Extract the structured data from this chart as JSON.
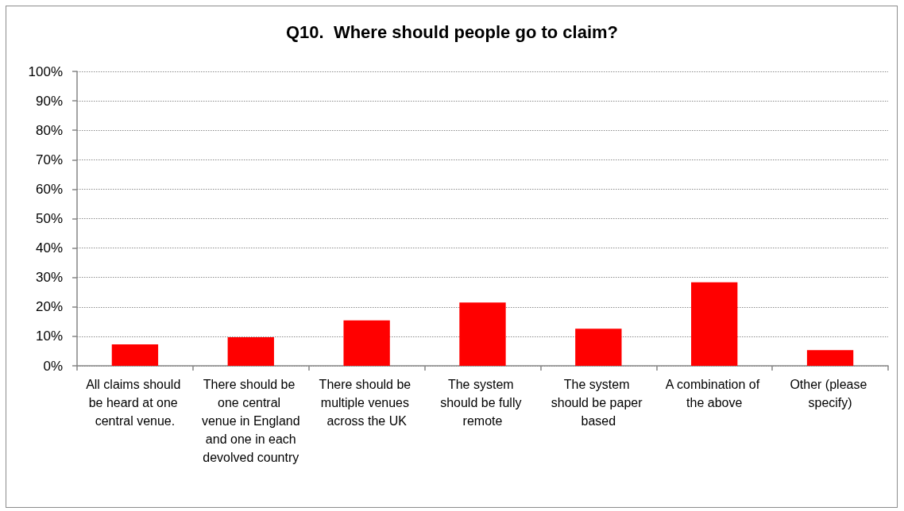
{
  "chart_data": {
    "type": "bar",
    "title": "Q10.  Where should people go to claim?",
    "categories": [
      "All claims should be heard at one central venue.",
      "There should be one central venue in England and one in each devolved country",
      "There should be multiple venues across the UK",
      "The system should be fully remote",
      "The system should be paper based",
      "A combination of the above",
      "Other (please specify)"
    ],
    "values": [
      7.3,
      9.7,
      15.4,
      21.5,
      12.6,
      28.4,
      5.3
    ],
    "color": "#ff0000",
    "ylim": [
      0,
      100
    ],
    "yticks": [
      {
        "value": 0,
        "label": "0%"
      },
      {
        "value": 10,
        "label": "10%"
      },
      {
        "value": 20,
        "label": "20%"
      },
      {
        "value": 30,
        "label": "30%"
      },
      {
        "value": 40,
        "label": "40%"
      },
      {
        "value": 50,
        "label": "50%"
      },
      {
        "value": 60,
        "label": "60%"
      },
      {
        "value": 70,
        "label": "70%"
      },
      {
        "value": 80,
        "label": "80%"
      },
      {
        "value": 90,
        "label": "90%"
      },
      {
        "value": 100,
        "label": "100%"
      }
    ],
    "grid": "y"
  }
}
